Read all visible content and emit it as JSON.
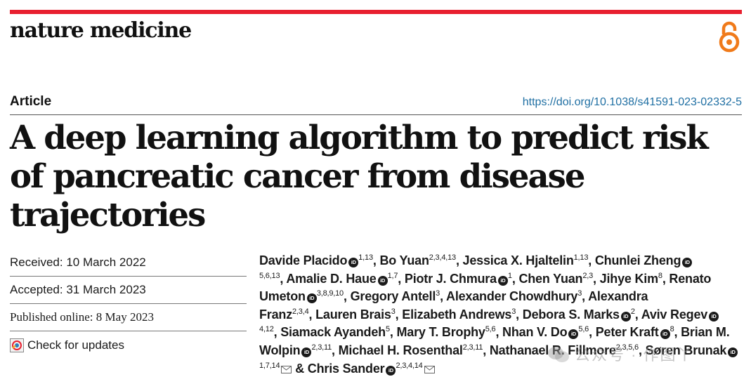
{
  "header": {
    "journal_name": "nature medicine",
    "open_access_icon": "open-access-icon",
    "accent_color": "#e8202f"
  },
  "article": {
    "type": "Article",
    "doi": "https://doi.org/10.1038/s41591-023-02332-5",
    "title": "A deep learning algorithm to predict risk of pancreatic cancer from disease trajectories"
  },
  "dates": {
    "received": "Received: 10 March 2022",
    "accepted": "Accepted: 31 March 2023",
    "published": "Published online: 8 May 2023",
    "check_updates": "Check for updates"
  },
  "authors": [
    {
      "name": "Davide Placido",
      "orcid": true,
      "aff": "1,13",
      "sep": ", "
    },
    {
      "name": "Bo Yuan",
      "orcid": false,
      "aff": "2,3,4,13",
      "sep": ", "
    },
    {
      "name": "Jessica X. Hjaltelin",
      "orcid": false,
      "aff": "1,13",
      "sep": ", "
    },
    {
      "name": "Chunlei Zheng",
      "orcid": true,
      "aff": "5,6,13",
      "sep": ", "
    },
    {
      "name": "Amalie D. Haue",
      "orcid": true,
      "aff": "1,7",
      "sep": ", "
    },
    {
      "name": "Piotr J. Chmura",
      "orcid": true,
      "aff": "1",
      "sep": ", "
    },
    {
      "name": "Chen Yuan",
      "orcid": false,
      "aff": "2,3",
      "sep": ", "
    },
    {
      "name": "Jihye Kim",
      "orcid": false,
      "aff": "8",
      "sep": ", "
    },
    {
      "name": "Renato Umeton",
      "orcid": true,
      "aff": "3,8,9,10",
      "sep": ", "
    },
    {
      "name": "Gregory Antell",
      "orcid": false,
      "aff": "3",
      "sep": ", "
    },
    {
      "name": "Alexander Chowdhury",
      "orcid": false,
      "aff": "3",
      "sep": ", "
    },
    {
      "name": "Alexandra Franz",
      "orcid": false,
      "aff": "2,3,4",
      "sep": ", "
    },
    {
      "name": "Lauren Brais",
      "orcid": false,
      "aff": "3",
      "sep": ", "
    },
    {
      "name": "Elizabeth Andrews",
      "orcid": false,
      "aff": "3",
      "sep": ", "
    },
    {
      "name": "Debora S. Marks",
      "orcid": true,
      "aff": "2",
      "sep": ", "
    },
    {
      "name": "Aviv Regev",
      "orcid": true,
      "aff": "4,12",
      "sep": ", "
    },
    {
      "name": "Siamack Ayandeh",
      "orcid": false,
      "aff": "5",
      "sep": ", "
    },
    {
      "name": "Mary T. Brophy",
      "orcid": false,
      "aff": "5,6",
      "sep": ", "
    },
    {
      "name": "Nhan V. Do",
      "orcid": true,
      "aff": "5,6",
      "sep": ", "
    },
    {
      "name": "Peter Kraft",
      "orcid": true,
      "aff": "8",
      "sep": ", "
    },
    {
      "name": "Brian M. Wolpin",
      "orcid": true,
      "aff": "2,3,11",
      "sep": ", "
    },
    {
      "name": "Michael H. Rosenthal",
      "orcid": false,
      "aff": "2,3,11",
      "sep": ", "
    },
    {
      "name": "Nathanael R. Fillmore",
      "orcid": false,
      "aff": "2,3,5,6",
      "sep": ", "
    },
    {
      "name": "Søren Brunak",
      "orcid": true,
      "aff": "1,7,14",
      "mail": true,
      "sep": " & "
    },
    {
      "name": "Chris Sander",
      "orcid": true,
      "aff": "2,3,4,14",
      "mail": true,
      "sep": ""
    }
  ],
  "watermark": "公众号 · 作图丫"
}
